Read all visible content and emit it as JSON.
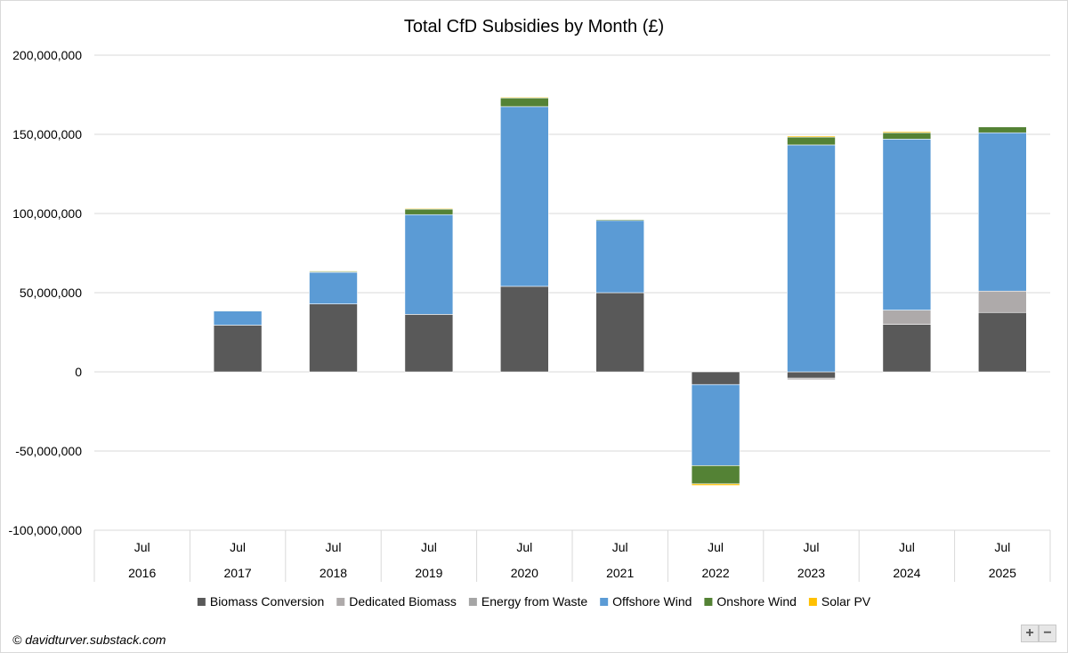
{
  "chart_data": {
    "type": "bar",
    "stacked": true,
    "title": "Total CfD Subsidies by Month (£)",
    "categories": [
      {
        "month": "Jul",
        "year": "2016"
      },
      {
        "month": "Jul",
        "year": "2017"
      },
      {
        "month": "Jul",
        "year": "2018"
      },
      {
        "month": "Jul",
        "year": "2019"
      },
      {
        "month": "Jul",
        "year": "2020"
      },
      {
        "month": "Jul",
        "year": "2021"
      },
      {
        "month": "Jul",
        "year": "2022"
      },
      {
        "month": "Jul",
        "year": "2023"
      },
      {
        "month": "Jul",
        "year": "2024"
      },
      {
        "month": "Jul",
        "year": "2025"
      }
    ],
    "series": [
      {
        "name": "Biomass Conversion",
        "color": "#595959",
        "values": [
          0,
          29500000,
          42900000,
          36300000,
          54000000,
          50000000,
          -8000000,
          -4000000,
          30000000,
          37500000
        ]
      },
      {
        "name": "Dedicated Biomass",
        "color": "#aeaaaa",
        "values": [
          0,
          0,
          0,
          0,
          0,
          0,
          0,
          -1000000,
          9000000,
          13500000
        ]
      },
      {
        "name": "Energy from Waste",
        "color": "#a5a5a5",
        "values": [
          0,
          0,
          0,
          0,
          0,
          0,
          0,
          -300000,
          0,
          0
        ]
      },
      {
        "name": "Offshore Wind",
        "color": "#5b9bd5",
        "values": [
          0,
          9000000,
          20000000,
          63000000,
          113500000,
          45600000,
          -51200000,
          143300000,
          108000000,
          100000000
        ]
      },
      {
        "name": "Onshore Wind",
        "color": "#548235",
        "values": [
          0,
          200000,
          600000,
          3500000,
          5500000,
          700000,
          -11500000,
          5000000,
          4000000,
          3700000
        ]
      },
      {
        "name": "Solar PV",
        "color": "#ffc000",
        "values": [
          0,
          300000,
          400000,
          500000,
          500000,
          200000,
          -1000000,
          700000,
          700000,
          0
        ]
      }
    ],
    "ylim": [
      -100000000,
      200000000
    ],
    "yticks": [
      200000000,
      150000000,
      100000000,
      50000000,
      0,
      -50000000,
      -100000000
    ],
    "ytick_labels": [
      "200,000,000",
      "150,000,000",
      "100,000,000",
      "50,000,000",
      "0",
      "-50,000,000",
      "-100,000,000"
    ],
    "grid": true,
    "legend_position": "bottom",
    "xlabel": "",
    "ylabel": ""
  },
  "credit": "© davidturver.substack.com",
  "controls": {
    "zoom_in": "+",
    "zoom_out": "−"
  }
}
